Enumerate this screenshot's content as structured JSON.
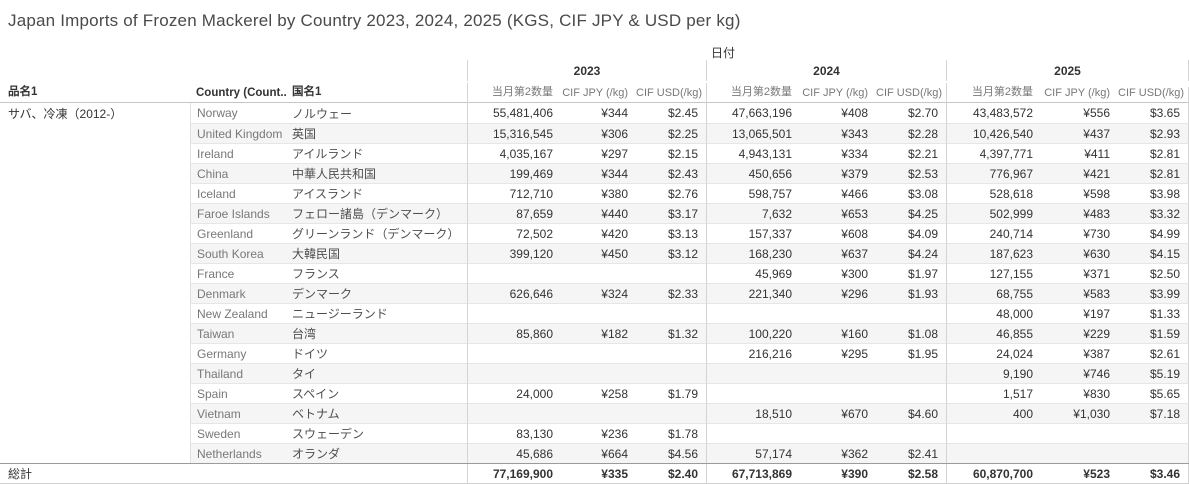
{
  "title": "Japan Imports of Frozen Mackerel by Country 2023, 2024, 2025 (KGS, CIF JPY & USD per kg)",
  "colors": {
    "band": "#f5f5f5",
    "row_line": "#e6e6e6",
    "group_line": "#d4d4d4",
    "header_line": "#c6c6c6",
    "total_line": "#9b9b9b",
    "text_primary": "#333333",
    "text_secondary": "#787878",
    "title_text": "#4a4a4a"
  },
  "chart_data": {
    "type": "table",
    "title": "Japan Imports of Frozen Mackerel by Country 2023, 2024, 2025 (KGS, CIF JPY & USD per kg)",
    "col_group_label": "日付",
    "years": [
      "2023",
      "2024",
      "2025"
    ],
    "measures": [
      "当月第2数量",
      "CIF JPY (/kg)",
      "CIF USD(/kg)"
    ],
    "headers": {
      "product": "品名1",
      "country_en": "Country (Count..",
      "country_jp": "国名1"
    },
    "row_group": "サバ、冷凍（2012-）",
    "rows": [
      {
        "en": "Norway",
        "jp": "ノルウェー",
        "vals": [
          "55,481,406",
          "¥344",
          "$2.45",
          "47,663,196",
          "¥408",
          "$2.70",
          "43,483,572",
          "¥556",
          "$3.65"
        ]
      },
      {
        "en": "United Kingdom",
        "jp": "英国",
        "vals": [
          "15,316,545",
          "¥306",
          "$2.25",
          "13,065,501",
          "¥343",
          "$2.28",
          "10,426,540",
          "¥437",
          "$2.93"
        ]
      },
      {
        "en": "Ireland",
        "jp": "アイルランド",
        "vals": [
          "4,035,167",
          "¥297",
          "$2.15",
          "4,943,131",
          "¥334",
          "$2.21",
          "4,397,771",
          "¥411",
          "$2.81"
        ]
      },
      {
        "en": "China",
        "jp": "中華人民共和国",
        "vals": [
          "199,469",
          "¥344",
          "$2.43",
          "450,656",
          "¥379",
          "$2.53",
          "776,967",
          "¥421",
          "$2.81"
        ]
      },
      {
        "en": "Iceland",
        "jp": "アイスランド",
        "vals": [
          "712,710",
          "¥380",
          "$2.76",
          "598,757",
          "¥466",
          "$3.08",
          "528,618",
          "¥598",
          "$3.98"
        ]
      },
      {
        "en": "Faroe Islands",
        "jp": "フェロー諸島（デンマーク）",
        "vals": [
          "87,659",
          "¥440",
          "$3.17",
          "7,632",
          "¥653",
          "$4.25",
          "502,999",
          "¥483",
          "$3.32"
        ]
      },
      {
        "en": "Greenland",
        "jp": "グリーンランド（デンマーク）",
        "vals": [
          "72,502",
          "¥420",
          "$3.13",
          "157,337",
          "¥608",
          "$4.09",
          "240,714",
          "¥730",
          "$4.99"
        ]
      },
      {
        "en": "South Korea",
        "jp": "大韓民国",
        "vals": [
          "399,120",
          "¥450",
          "$3.12",
          "168,230",
          "¥637",
          "$4.24",
          "187,623",
          "¥630",
          "$4.15"
        ]
      },
      {
        "en": "France",
        "jp": "フランス",
        "vals": [
          "",
          "",
          "",
          "45,969",
          "¥300",
          "$1.97",
          "127,155",
          "¥371",
          "$2.50"
        ]
      },
      {
        "en": "Denmark",
        "jp": "デンマーク",
        "vals": [
          "626,646",
          "¥324",
          "$2.33",
          "221,340",
          "¥296",
          "$1.93",
          "68,755",
          "¥583",
          "$3.99"
        ]
      },
      {
        "en": "New Zealand",
        "jp": "ニュージーランド",
        "vals": [
          "",
          "",
          "",
          "",
          "",
          "",
          "48,000",
          "¥197",
          "$1.33"
        ]
      },
      {
        "en": "Taiwan",
        "jp": "台湾",
        "vals": [
          "85,860",
          "¥182",
          "$1.32",
          "100,220",
          "¥160",
          "$1.08",
          "46,855",
          "¥229",
          "$1.59"
        ]
      },
      {
        "en": "Germany",
        "jp": "ドイツ",
        "vals": [
          "",
          "",
          "",
          "216,216",
          "¥295",
          "$1.95",
          "24,024",
          "¥387",
          "$2.61"
        ]
      },
      {
        "en": "Thailand",
        "jp": "タイ",
        "vals": [
          "",
          "",
          "",
          "",
          "",
          "",
          "9,190",
          "¥746",
          "$5.19"
        ]
      },
      {
        "en": "Spain",
        "jp": "スペイン",
        "vals": [
          "24,000",
          "¥258",
          "$1.79",
          "",
          "",
          "",
          "1,517",
          "¥830",
          "$5.65"
        ]
      },
      {
        "en": "Vietnam",
        "jp": "ベトナム",
        "vals": [
          "",
          "",
          "",
          "18,510",
          "¥670",
          "$4.60",
          "400",
          "¥1,030",
          "$7.18"
        ]
      },
      {
        "en": "Sweden",
        "jp": "スウェーデン",
        "vals": [
          "83,130",
          "¥236",
          "$1.78",
          "",
          "",
          "",
          "",
          "",
          ""
        ]
      },
      {
        "en": "Netherlands",
        "jp": "オランダ",
        "vals": [
          "45,686",
          "¥664",
          "$4.56",
          "57,174",
          "¥362",
          "$2.41",
          "",
          "",
          ""
        ]
      }
    ],
    "total": {
      "label": "総計",
      "vals": [
        "77,169,900",
        "¥335",
        "$2.40",
        "67,713,869",
        "¥390",
        "$2.58",
        "60,870,700",
        "¥523",
        "$3.46"
      ]
    }
  }
}
